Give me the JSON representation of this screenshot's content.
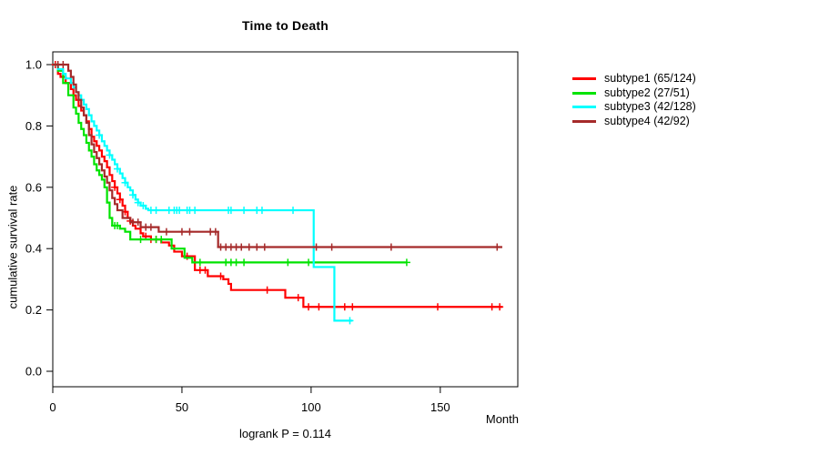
{
  "title": "Time to Death",
  "axes": {
    "x_label": "Month",
    "y_label": "cumulative survival rate"
  },
  "footer": {
    "logrank_text": "logrank P = 0.114"
  },
  "legend": {
    "items": [
      {
        "label": "subtype1 (65/124)",
        "color": "#ff0000"
      },
      {
        "label": "subtype2 (27/51)",
        "color": "#00e300"
      },
      {
        "label": "subtype3 (42/128)",
        "color": "#00ffff"
      },
      {
        "label": "subtype4 (42/92)",
        "color": "#a52a2a"
      }
    ]
  },
  "chart_data": {
    "type": "line",
    "variant": "kaplan_meier_step",
    "title": "Time to Death",
    "xlabel": "Month",
    "ylabel": "cumulative survival rate",
    "xlim": [
      0,
      180
    ],
    "ylim": [
      0,
      1
    ],
    "x_ticks": [
      0,
      50,
      100,
      150
    ],
    "y_ticks": [
      0.0,
      0.2,
      0.4,
      0.6,
      0.8,
      1.0
    ],
    "grid": false,
    "legend_position": "right-outside",
    "annotation": "logrank P = 0.114",
    "axis_color": "#000000",
    "series": [
      {
        "name": "subtype1 (65/124)",
        "color": "#ff0000",
        "end_x": 174,
        "steps": [
          [
            0,
            1.0
          ],
          [
            2,
            0.97
          ],
          [
            3,
            0.96
          ],
          [
            5,
            0.94
          ],
          [
            7,
            0.92
          ],
          [
            8,
            0.9
          ],
          [
            9,
            0.885
          ],
          [
            10,
            0.865
          ],
          [
            11,
            0.85
          ],
          [
            12,
            0.835
          ],
          [
            13,
            0.815
          ],
          [
            14,
            0.79
          ],
          [
            15,
            0.765
          ],
          [
            16,
            0.75
          ],
          [
            17,
            0.735
          ],
          [
            18,
            0.72
          ],
          [
            19,
            0.7
          ],
          [
            20,
            0.685
          ],
          [
            21,
            0.665
          ],
          [
            22,
            0.64
          ],
          [
            23,
            0.62
          ],
          [
            24,
            0.6
          ],
          [
            25,
            0.58
          ],
          [
            26,
            0.56
          ],
          [
            27,
            0.54
          ],
          [
            28,
            0.52
          ],
          [
            29,
            0.5
          ],
          [
            30,
            0.49
          ],
          [
            31,
            0.475
          ],
          [
            32,
            0.465
          ],
          [
            34,
            0.45
          ],
          [
            35,
            0.44
          ],
          [
            38,
            0.43
          ],
          [
            42,
            0.42
          ],
          [
            45,
            0.41
          ],
          [
            47,
            0.39
          ],
          [
            50,
            0.375
          ],
          [
            55,
            0.33
          ],
          [
            60,
            0.31
          ],
          [
            66,
            0.3
          ],
          [
            68,
            0.285
          ],
          [
            69,
            0.265
          ],
          [
            90,
            0.24
          ],
          [
            97,
            0.21
          ]
        ],
        "censor_x": [
          1,
          24,
          26,
          28,
          30,
          36,
          38,
          40,
          52,
          57,
          59,
          65,
          83,
          95,
          99,
          103,
          113,
          116,
          149,
          170,
          173
        ]
      },
      {
        "name": "subtype2 (27/51)",
        "color": "#00e300",
        "end_x": 137,
        "steps": [
          [
            0,
            1.0
          ],
          [
            2,
            0.98
          ],
          [
            4,
            0.94
          ],
          [
            6,
            0.9
          ],
          [
            8,
            0.86
          ],
          [
            9,
            0.84
          ],
          [
            10,
            0.81
          ],
          [
            11,
            0.79
          ],
          [
            12,
            0.77
          ],
          [
            13,
            0.745
          ],
          [
            14,
            0.72
          ],
          [
            15,
            0.7
          ],
          [
            16,
            0.675
          ],
          [
            17,
            0.655
          ],
          [
            18,
            0.64
          ],
          [
            19,
            0.625
          ],
          [
            20,
            0.6
          ],
          [
            21,
            0.55
          ],
          [
            22,
            0.5
          ],
          [
            23,
            0.475
          ],
          [
            26,
            0.465
          ],
          [
            28,
            0.455
          ],
          [
            30,
            0.43
          ],
          [
            46,
            0.4
          ],
          [
            51,
            0.37
          ],
          [
            54,
            0.355
          ]
        ],
        "censor_x": [
          24,
          25,
          34,
          40,
          42,
          57,
          67,
          69,
          71,
          74,
          91,
          99,
          137
        ]
      },
      {
        "name": "subtype3 (42/128)",
        "color": "#00ffff",
        "end_x": 116,
        "steps": [
          [
            0,
            1.0
          ],
          [
            2,
            0.985
          ],
          [
            4,
            0.97
          ],
          [
            5,
            0.955
          ],
          [
            7,
            0.94
          ],
          [
            8,
            0.925
          ],
          [
            9,
            0.91
          ],
          [
            10,
            0.9
          ],
          [
            11,
            0.885
          ],
          [
            12,
            0.87
          ],
          [
            13,
            0.855
          ],
          [
            14,
            0.835
          ],
          [
            15,
            0.815
          ],
          [
            16,
            0.8
          ],
          [
            17,
            0.785
          ],
          [
            18,
            0.77
          ],
          [
            19,
            0.75
          ],
          [
            20,
            0.735
          ],
          [
            21,
            0.72
          ],
          [
            22,
            0.705
          ],
          [
            23,
            0.69
          ],
          [
            24,
            0.675
          ],
          [
            25,
            0.66
          ],
          [
            26,
            0.645
          ],
          [
            27,
            0.63
          ],
          [
            28,
            0.615
          ],
          [
            29,
            0.6
          ],
          [
            30,
            0.59
          ],
          [
            31,
            0.575
          ],
          [
            32,
            0.56
          ],
          [
            33,
            0.55
          ],
          [
            34,
            0.54
          ],
          [
            36,
            0.53
          ],
          [
            37,
            0.525
          ],
          [
            101,
            0.34
          ],
          [
            109,
            0.165
          ]
        ],
        "censor_x": [
          18,
          22,
          25,
          28,
          31,
          33,
          35,
          38,
          40,
          45,
          47,
          48,
          49,
          52,
          53,
          55,
          68,
          69,
          74,
          79,
          81,
          93,
          115
        ]
      },
      {
        "name": "subtype4 (42/92)",
        "color": "#a52a2a",
        "end_x": 174,
        "steps": [
          [
            0,
            1.0
          ],
          [
            6,
            0.98
          ],
          [
            7,
            0.96
          ],
          [
            8,
            0.935
          ],
          [
            9,
            0.91
          ],
          [
            10,
            0.885
          ],
          [
            11,
            0.86
          ],
          [
            12,
            0.835
          ],
          [
            13,
            0.81
          ],
          [
            14,
            0.77
          ],
          [
            15,
            0.74
          ],
          [
            16,
            0.715
          ],
          [
            17,
            0.695
          ],
          [
            18,
            0.675
          ],
          [
            19,
            0.655
          ],
          [
            20,
            0.635
          ],
          [
            21,
            0.615
          ],
          [
            22,
            0.59
          ],
          [
            23,
            0.565
          ],
          [
            24,
            0.545
          ],
          [
            25,
            0.525
          ],
          [
            27,
            0.5
          ],
          [
            30,
            0.486
          ],
          [
            34,
            0.47
          ],
          [
            41,
            0.455
          ],
          [
            64,
            0.405
          ]
        ],
        "censor_x": [
          2,
          4,
          31,
          33,
          36,
          38,
          44,
          50,
          53,
          61,
          63,
          65,
          67,
          69,
          71,
          73,
          76,
          79,
          82,
          102,
          108,
          131,
          172
        ]
      }
    ]
  }
}
